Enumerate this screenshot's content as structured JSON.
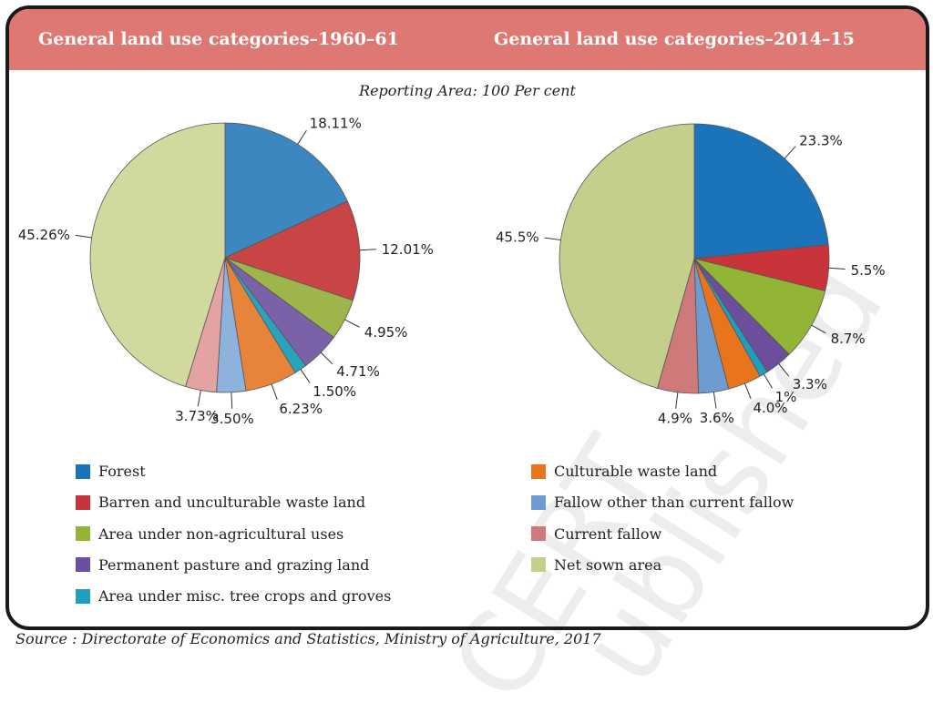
{
  "chart_data": [
    {
      "type": "pie",
      "title": "General land use categories–1960–61",
      "categories": [
        "Forest",
        "Barren and unculturable waste land",
        "Area under non-agricultural uses",
        "Permanent pasture and grazing land",
        "Area under misc. tree crops and groves",
        "Culturable waste land",
        "Fallow other than current fallow",
        "Current fallow",
        "Net sown area"
      ],
      "values": [
        18.11,
        12.01,
        4.95,
        4.71,
        1.5,
        6.23,
        3.5,
        3.73,
        45.26
      ],
      "labels": [
        "18.11%",
        "12.01%",
        "4.95%",
        "4.71%",
        "1.50%",
        "6.23%",
        "3.50%",
        "3.73%",
        "45.26%"
      ],
      "colors": [
        "#3d87c0",
        "#c94444",
        "#9db54a",
        "#7b62a8",
        "#2aa3bd",
        "#e8843a",
        "#8db2dc",
        "#e3a3a3",
        "#d1d99e"
      ]
    },
    {
      "type": "pie",
      "title": "General land use categories–2014–15",
      "categories": [
        "Forest",
        "Barren and unculturable waste land",
        "Area under non-agricultural uses",
        "Permanent pasture and grazing land",
        "Area under misc. tree crops and groves",
        "Culturable waste land",
        "Fallow other than current fallow",
        "Current fallow",
        "Net sown area"
      ],
      "values": [
        23.3,
        5.5,
        8.7,
        3.3,
        1,
        4.0,
        3.6,
        4.9,
        45.5
      ],
      "labels": [
        "23.3%",
        "5.5%",
        "8.7%",
        "3.3%",
        "1%",
        "4.0%",
        "3.6%",
        "4.9%",
        "45.5%"
      ],
      "colors": [
        "#1b74b9",
        "#c9333a",
        "#93b536",
        "#6b4f9c",
        "#1f9fc0",
        "#e8741e",
        "#6d9cd0",
        "#cf7a7a",
        "#c4cf8c"
      ]
    }
  ],
  "subtitle": "Reporting Area: 100 Per cent",
  "legend": [
    {
      "label": "Forest",
      "color": "#1b74b9"
    },
    {
      "label": "Barren and unculturable waste land",
      "color": "#c9333a"
    },
    {
      "label": "Area under non-agricultural uses",
      "color": "#93b536"
    },
    {
      "label": "Permanent pasture and grazing land",
      "color": "#6b4f9c"
    },
    {
      "label": "Area under misc. tree crops and groves",
      "color": "#1f9fc0"
    },
    {
      "label": "Culturable waste land",
      "color": "#e8741e"
    },
    {
      "label": "Fallow other than current fallow",
      "color": "#6d9cd0"
    },
    {
      "label": "Current fallow",
      "color": "#cf7a7a"
    },
    {
      "label": "Net sown area",
      "color": "#c4cf8c"
    }
  ],
  "source": "Source : Directorate of Economics and Statistics, Ministry of Agriculture, 2017",
  "watermark": [
    "CERT",
    "ublished"
  ],
  "header_color": "#de7873"
}
